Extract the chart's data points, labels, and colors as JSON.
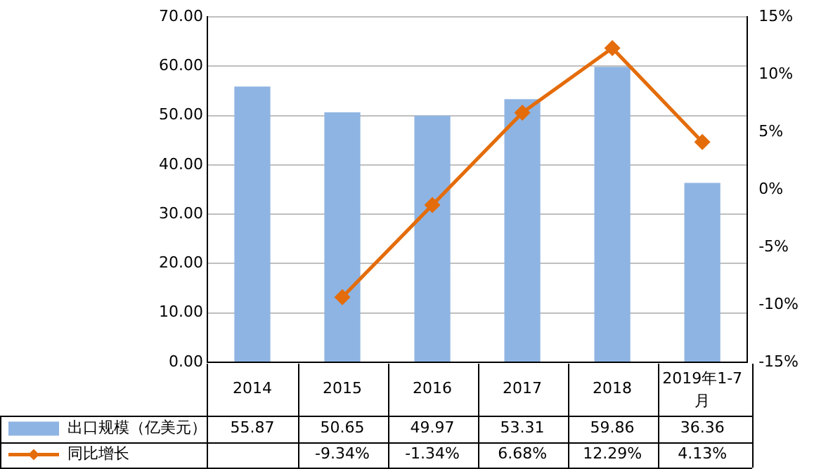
{
  "chart_data": {
    "type": "bar",
    "categories": [
      "2014",
      "2015",
      "2016",
      "2017",
      "2018",
      "2019年1-7月"
    ],
    "series": [
      {
        "name": "出口规模（亿美元）",
        "color": "#8eb4e3",
        "values": [
          55.87,
          50.65,
          49.97,
          53.31,
          59.86,
          36.36
        ],
        "value_labels": [
          "55.87",
          "50.65",
          "49.97",
          "53.31",
          "59.86",
          "36.36"
        ]
      },
      {
        "name": "同比增长",
        "type": "line",
        "axis": "y2",
        "color": "#e46c0a",
        "values": [
          null,
          -9.34,
          -1.34,
          6.68,
          12.29,
          4.13
        ],
        "value_labels": [
          null,
          "-9.34%",
          "-1.34%",
          "6.68%",
          "12.29%",
          "4.13%"
        ]
      }
    ],
    "ylim": [
      0,
      70
    ],
    "yticks": [
      {
        "value": 0,
        "label": "0.00"
      },
      {
        "value": 10,
        "label": "10.00"
      },
      {
        "value": 20,
        "label": "20.00"
      },
      {
        "value": 30,
        "label": "30.00"
      },
      {
        "value": 40,
        "label": "40.00"
      },
      {
        "value": 50,
        "label": "50.00"
      },
      {
        "value": 60,
        "label": "60.00"
      },
      {
        "value": 70,
        "label": "70.00"
      }
    ],
    "y2lim": [
      -15,
      15
    ],
    "y2ticks": [
      {
        "value": -15,
        "label": "-15%"
      },
      {
        "value": -10,
        "label": "-10%"
      },
      {
        "value": -5,
        "label": "-5%"
      },
      {
        "value": 0,
        "label": "0%"
      },
      {
        "value": 5,
        "label": "5%"
      },
      {
        "value": 10,
        "label": "10%"
      },
      {
        "value": 15,
        "label": "15%"
      }
    ],
    "grid": "y",
    "legend": "bottom",
    "marker": "diamond",
    "line_style": "solid"
  }
}
